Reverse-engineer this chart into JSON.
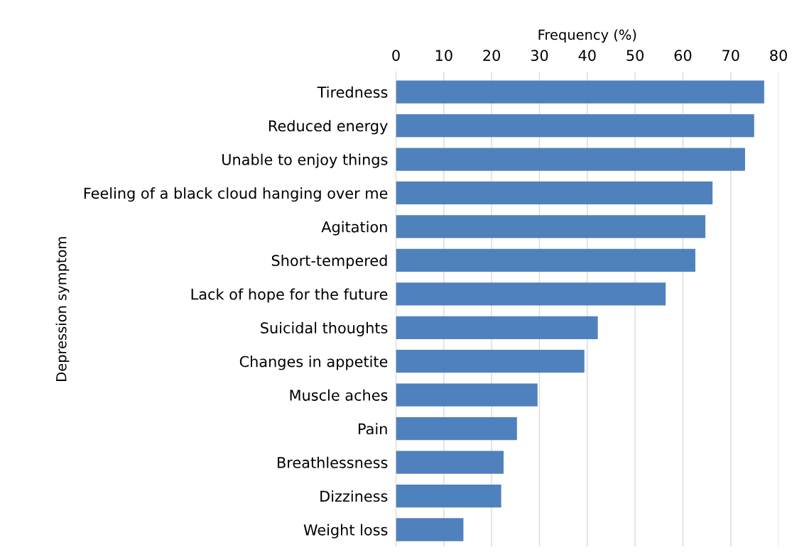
{
  "chart_data": {
    "type": "bar",
    "orientation": "horizontal",
    "xlabel": "Frequency (%)",
    "ylabel": "Depression symptom",
    "categories": [
      "Tiredness",
      "Reduced energy",
      "Unable to enjoy things",
      "Feeling of a black cloud hanging over me",
      "Agitation",
      "Short-tempered",
      "Lack of hope for the future",
      "Suicidal thoughts",
      "Changes in appetite",
      "Muscle aches",
      "Pain",
      "Breathlessness",
      "Dizziness",
      "Weight loss"
    ],
    "values": [
      77.0,
      74.9,
      73.0,
      66.2,
      64.7,
      62.6,
      56.4,
      42.2,
      39.4,
      29.6,
      25.3,
      22.5,
      22.0,
      14.1
    ],
    "color": "#4f81bd",
    "xlim": [
      0,
      80
    ],
    "xticks": [
      0,
      10,
      20,
      30,
      40,
      50,
      60,
      70,
      80
    ],
    "grid": "x"
  }
}
